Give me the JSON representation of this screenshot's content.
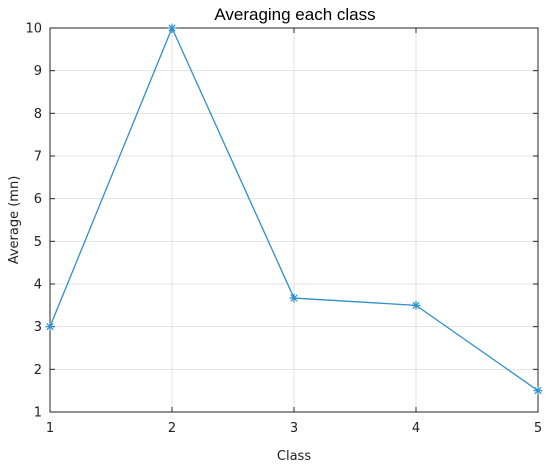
{
  "chart_data": {
    "type": "line",
    "title": "Averaging each class",
    "xlabel": "Class",
    "ylabel": "Average (mn)",
    "x": [
      1,
      2,
      3,
      4,
      5
    ],
    "xticks": [
      1,
      2,
      3,
      4,
      5
    ],
    "yticks": [
      1,
      2,
      3,
      4,
      5,
      6,
      7,
      8,
      9,
      10
    ],
    "xlim": [
      1,
      5
    ],
    "ylim": [
      1,
      10
    ],
    "grid": true,
    "series": [
      {
        "values": [
          3,
          10,
          3.67,
          3.5,
          1.5
        ],
        "color": "#2f8fcb",
        "marker": "asterisk"
      }
    ]
  }
}
